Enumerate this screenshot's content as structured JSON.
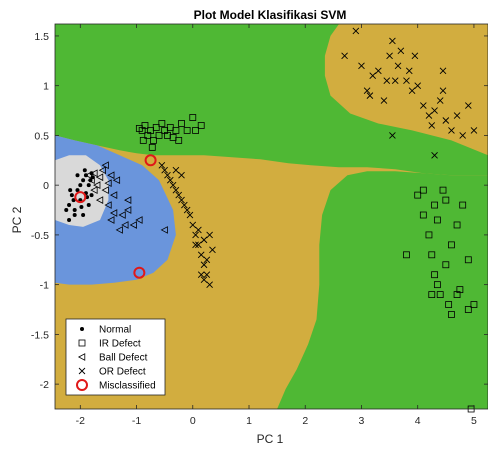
{
  "chart_data": {
    "type": "scatter",
    "title": "Plot Model Klasifikasi SVM",
    "xlabel": "PC 1",
    "ylabel": "PC 2",
    "xlim": [
      -2.45,
      5.25
    ],
    "ylim": [
      -2.25,
      1.62
    ],
    "xticks": [
      -2,
      -1,
      0,
      1,
      2,
      3,
      4,
      5
    ],
    "yticks": [
      -2,
      -1.5,
      -1,
      -0.5,
      0,
      0.5,
      1,
      1.5
    ],
    "xtick_labels": [
      "-2",
      "-1",
      "0",
      "1",
      "2",
      "3",
      "4",
      "5"
    ],
    "ytick_labels": [
      "-2",
      "-1.5",
      "-1",
      "-0.5",
      "0",
      "0.5",
      "1",
      "1.5"
    ],
    "grid": false,
    "legend_position": "bottom-left",
    "colors": {
      "green_region": "#4fb834",
      "gold_region": "#d2ad3f",
      "blue_region": "#6a95dc",
      "gray_region": "#d9d9d9",
      "misclassified": "#e01818",
      "marker": "#000000"
    },
    "regions": [
      {
        "name": "Normal",
        "color": "#d9d9d9",
        "polygon": [
          [
            -2.45,
            0.25
          ],
          [
            -2.2,
            0.3
          ],
          [
            -1.9,
            0.3
          ],
          [
            -1.65,
            0.2
          ],
          [
            -1.5,
            0.05
          ],
          [
            -1.5,
            -0.15
          ],
          [
            -1.65,
            -0.35
          ],
          [
            -1.95,
            -0.42
          ],
          [
            -2.2,
            -0.4
          ],
          [
            -2.45,
            -0.35
          ]
        ]
      },
      {
        "name": "Ball Defect",
        "color": "#6a95dc",
        "polygon": [
          [
            -2.45,
            0.5
          ],
          [
            -2.1,
            0.45
          ],
          [
            -1.7,
            0.4
          ],
          [
            -1.3,
            0.3
          ],
          [
            -0.9,
            0.2
          ],
          [
            -0.6,
            0.05
          ],
          [
            -0.35,
            -0.25
          ],
          [
            -0.3,
            -0.5
          ],
          [
            -0.45,
            -0.75
          ],
          [
            -0.7,
            -0.88
          ],
          [
            -1.0,
            -0.95
          ],
          [
            -1.4,
            -0.98
          ],
          [
            -1.8,
            -1.0
          ],
          [
            -2.2,
            -1.0
          ],
          [
            -2.45,
            -0.98
          ]
        ]
      },
      {
        "name": "IR Defect",
        "color": "#4fb834",
        "polygon": [
          [
            -2.45,
            1.62
          ],
          [
            -2.45,
            0.5
          ],
          [
            -2.1,
            0.45
          ],
          [
            -1.7,
            0.4
          ],
          [
            -1.3,
            0.35
          ],
          [
            -1.0,
            0.32
          ],
          [
            -0.7,
            0.3
          ],
          [
            -0.3,
            0.3
          ],
          [
            0.2,
            0.3
          ],
          [
            0.7,
            0.28
          ],
          [
            1.2,
            0.26
          ],
          [
            1.7,
            0.22
          ],
          [
            2.1,
            0.2
          ],
          [
            2.6,
            0.18
          ],
          [
            3.1,
            0.18
          ],
          [
            3.6,
            0.16
          ],
          [
            4.1,
            0.12
          ],
          [
            4.6,
            0.1
          ],
          [
            5.25,
            0.1
          ],
          [
            5.25,
            0.3
          ],
          [
            4.6,
            0.45
          ],
          [
            3.9,
            0.55
          ],
          [
            3.3,
            0.62
          ],
          [
            2.8,
            0.72
          ],
          [
            2.45,
            0.9
          ],
          [
            2.35,
            1.1
          ],
          [
            2.35,
            1.3
          ],
          [
            2.45,
            1.5
          ],
          [
            2.6,
            1.62
          ]
        ]
      },
      {
        "name": "IR Defect",
        "color": "#4fb834",
        "polygon": [
          [
            5.25,
            0.1
          ],
          [
            4.6,
            0.1
          ],
          [
            4.1,
            0.12
          ],
          [
            3.6,
            0.14
          ],
          [
            3.1,
            0.14
          ],
          [
            2.75,
            0.1
          ],
          [
            2.45,
            -0.05
          ],
          [
            2.3,
            -0.3
          ],
          [
            2.25,
            -0.6
          ],
          [
            2.25,
            -1.0
          ],
          [
            2.2,
            -1.35
          ],
          [
            2.05,
            -1.6
          ],
          [
            1.85,
            -1.85
          ],
          [
            1.65,
            -2.05
          ],
          [
            1.5,
            -2.25
          ],
          [
            5.25,
            -2.25
          ]
        ]
      }
    ],
    "series": [
      {
        "name": "Normal",
        "marker": "dot",
        "points": [
          [
            -2.2,
            -0.2
          ],
          [
            -2.15,
            -0.1
          ],
          [
            -2.1,
            -0.25
          ],
          [
            -2.05,
            -0.05
          ],
          [
            -2.0,
            0.0
          ],
          [
            -2.0,
            -0.15
          ],
          [
            -1.95,
            -0.3
          ],
          [
            -1.95,
            0.05
          ],
          [
            -1.9,
            0.1
          ],
          [
            -1.9,
            -0.08
          ],
          [
            -1.85,
            0.0
          ],
          [
            -1.85,
            -0.2
          ],
          [
            -1.8,
            0.12
          ],
          [
            -1.8,
            -0.1
          ],
          [
            -2.25,
            -0.25
          ],
          [
            -2.2,
            -0.35
          ],
          [
            -2.1,
            -0.3
          ],
          [
            -2.05,
            0.1
          ],
          [
            -1.98,
            -0.22
          ],
          [
            -1.88,
            -0.12
          ],
          [
            -1.82,
            0.05
          ],
          [
            -2.12,
            -0.15
          ],
          [
            -2.18,
            -0.05
          ],
          [
            -1.78,
            0.08
          ],
          [
            -1.92,
            0.15
          ]
        ]
      },
      {
        "name": "IR Defect",
        "marker": "square",
        "points": [
          [
            -0.95,
            0.57
          ],
          [
            -0.9,
            0.55
          ],
          [
            -0.85,
            0.6
          ],
          [
            -0.8,
            0.5
          ],
          [
            -0.75,
            0.55
          ],
          [
            -0.7,
            0.45
          ],
          [
            -0.65,
            0.58
          ],
          [
            -0.6,
            0.5
          ],
          [
            -0.55,
            0.62
          ],
          [
            -0.5,
            0.55
          ],
          [
            -0.45,
            0.5
          ],
          [
            -0.4,
            0.58
          ],
          [
            -0.3,
            0.55
          ],
          [
            -0.2,
            0.62
          ],
          [
            -0.1,
            0.55
          ],
          [
            0.0,
            0.68
          ],
          [
            0.05,
            0.55
          ],
          [
            0.15,
            0.6
          ],
          [
            -0.88,
            0.45
          ],
          [
            -0.72,
            0.38
          ],
          [
            -0.35,
            0.48
          ],
          [
            -0.25,
            0.45
          ],
          [
            4.0,
            -0.1
          ],
          [
            4.1,
            -0.3
          ],
          [
            4.2,
            -0.5
          ],
          [
            4.25,
            -0.7
          ],
          [
            4.3,
            -0.9
          ],
          [
            4.35,
            -1.0
          ],
          [
            4.4,
            -1.1
          ],
          [
            4.5,
            -0.8
          ],
          [
            4.55,
            -1.2
          ],
          [
            4.6,
            -0.6
          ],
          [
            4.7,
            -0.4
          ],
          [
            4.75,
            -1.05
          ],
          [
            4.8,
            -0.2
          ],
          [
            4.5,
            -0.15
          ],
          [
            4.35,
            -0.35
          ],
          [
            4.9,
            -1.25
          ],
          [
            4.3,
            -0.2
          ],
          [
            4.6,
            -1.3
          ],
          [
            4.9,
            -0.75
          ],
          [
            4.1,
            -0.05
          ],
          [
            3.8,
            -0.7
          ],
          [
            4.45,
            -0.05
          ],
          [
            5.0,
            -1.2
          ],
          [
            4.95,
            -2.25
          ],
          [
            4.7,
            -1.1
          ],
          [
            4.25,
            -1.1
          ]
        ]
      },
      {
        "name": "Ball Defect",
        "marker": "triangle-left",
        "points": [
          [
            -1.85,
            0.1
          ],
          [
            -1.8,
            0.05
          ],
          [
            -1.75,
            0.12
          ],
          [
            -1.7,
            0.0
          ],
          [
            -1.65,
            0.08
          ],
          [
            -1.6,
            0.15
          ],
          [
            -1.55,
            -0.05
          ],
          [
            -1.5,
            0.02
          ],
          [
            -1.45,
            0.1
          ],
          [
            -1.4,
            -0.1
          ],
          [
            -1.75,
            -0.05
          ],
          [
            -1.65,
            -0.15
          ],
          [
            -1.5,
            -0.2
          ],
          [
            -1.45,
            -0.35
          ],
          [
            -1.4,
            -0.28
          ],
          [
            -1.3,
            -0.45
          ],
          [
            -1.25,
            -0.3
          ],
          [
            -1.15,
            -0.25
          ],
          [
            -1.05,
            -0.4
          ],
          [
            -1.15,
            -0.15
          ],
          [
            -1.55,
            0.2
          ],
          [
            -1.35,
            0.05
          ],
          [
            -0.95,
            -0.35
          ],
          [
            -0.5,
            -0.45
          ],
          [
            -1.2,
            -0.4
          ]
        ]
      },
      {
        "name": "OR Defect",
        "marker": "x",
        "points": [
          [
            -0.55,
            0.2
          ],
          [
            -0.5,
            0.15
          ],
          [
            -0.45,
            0.1
          ],
          [
            -0.4,
            0.05
          ],
          [
            -0.35,
            0.0
          ],
          [
            -0.3,
            -0.05
          ],
          [
            -0.25,
            -0.1
          ],
          [
            -0.2,
            -0.15
          ],
          [
            -0.15,
            -0.2
          ],
          [
            -0.1,
            -0.25
          ],
          [
            -0.05,
            -0.3
          ],
          [
            0.0,
            -0.4
          ],
          [
            0.05,
            -0.5
          ],
          [
            0.1,
            -0.6
          ],
          [
            0.15,
            -0.7
          ],
          [
            0.2,
            -0.8
          ],
          [
            0.25,
            -0.9
          ],
          [
            0.3,
            -1.0
          ],
          [
            0.1,
            -0.45
          ],
          [
            0.2,
            -0.55
          ],
          [
            0.3,
            -0.5
          ],
          [
            0.15,
            -0.9
          ],
          [
            0.25,
            -0.75
          ],
          [
            0.05,
            -0.6
          ],
          [
            -0.3,
            0.15
          ],
          [
            -0.2,
            0.1
          ],
          [
            0.35,
            -0.65
          ],
          [
            0.2,
            -0.95
          ],
          [
            2.9,
            1.55
          ],
          [
            3.0,
            1.2
          ],
          [
            3.1,
            0.95
          ],
          [
            3.15,
            0.9
          ],
          [
            3.2,
            1.1
          ],
          [
            3.3,
            1.15
          ],
          [
            3.4,
            0.85
          ],
          [
            3.5,
            1.3
          ],
          [
            3.55,
            1.45
          ],
          [
            3.6,
            1.05
          ],
          [
            3.65,
            1.2
          ],
          [
            3.8,
            1.05
          ],
          [
            3.85,
            1.15
          ],
          [
            3.9,
            0.95
          ],
          [
            4.0,
            1.0
          ],
          [
            4.1,
            0.8
          ],
          [
            4.2,
            0.7
          ],
          [
            4.25,
            0.6
          ],
          [
            4.3,
            0.75
          ],
          [
            4.4,
            0.85
          ],
          [
            4.45,
            0.95
          ],
          [
            4.5,
            0.65
          ],
          [
            4.6,
            0.55
          ],
          [
            4.7,
            0.7
          ],
          [
            4.8,
            0.5
          ],
          [
            4.9,
            0.8
          ],
          [
            5.0,
            0.55
          ],
          [
            3.45,
            1.05
          ],
          [
            3.55,
            0.5
          ],
          [
            3.95,
            1.3
          ],
          [
            4.45,
            1.15
          ],
          [
            4.3,
            0.3
          ],
          [
            2.7,
            1.3
          ],
          [
            3.7,
            1.35
          ]
        ]
      }
    ],
    "misclassified": [
      [
        -0.75,
        0.25
      ],
      [
        -2.0,
        -0.12
      ],
      [
        -0.95,
        -0.88
      ]
    ],
    "legend": [
      {
        "label": "Normal",
        "marker": "dot"
      },
      {
        "label": "IR Defect",
        "marker": "square"
      },
      {
        "label": "Ball Defect",
        "marker": "triangle-left"
      },
      {
        "label": "OR Defect",
        "marker": "x"
      },
      {
        "label": "Misclassified",
        "marker": "circle-red"
      }
    ]
  }
}
